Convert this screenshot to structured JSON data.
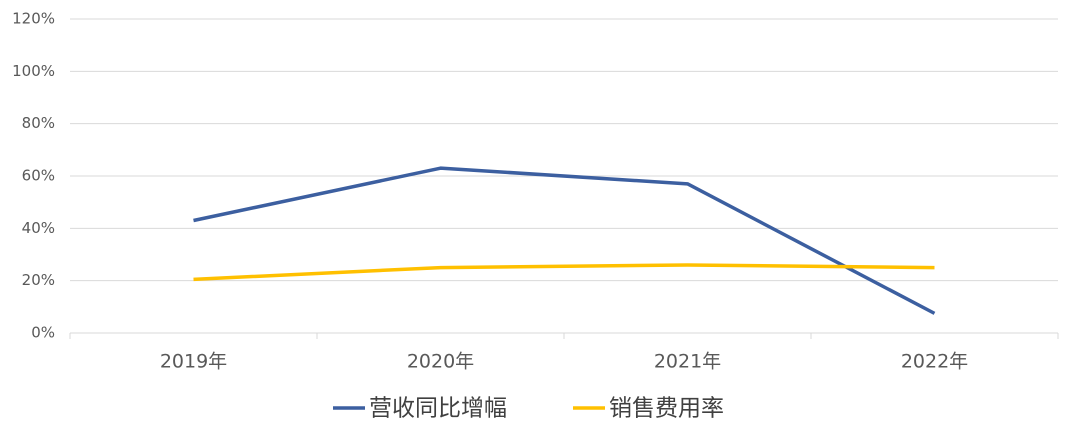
{
  "chart_data": {
    "type": "line",
    "categories": [
      "2019年",
      "2020年",
      "2021年",
      "2022年"
    ],
    "series": [
      {
        "name": "营收同比增幅",
        "color": "#3c5fa0",
        "values": [
          43,
          63,
          57,
          7.5
        ]
      },
      {
        "name": "销售费用率",
        "color": "#ffc000",
        "values": [
          20.5,
          25,
          26,
          25
        ]
      }
    ],
    "ylim": [
      0,
      120
    ],
    "yticks": [
      {
        "value": 0,
        "label": "0%"
      },
      {
        "value": 20,
        "label": "20%"
      },
      {
        "value": 40,
        "label": "40%"
      },
      {
        "value": 60,
        "label": "60%"
      },
      {
        "value": 80,
        "label": "80%"
      },
      {
        "value": 100,
        "label": "100%"
      },
      {
        "value": 120,
        "label": "120%"
      }
    ],
    "grid": true,
    "legend": "bottom"
  }
}
